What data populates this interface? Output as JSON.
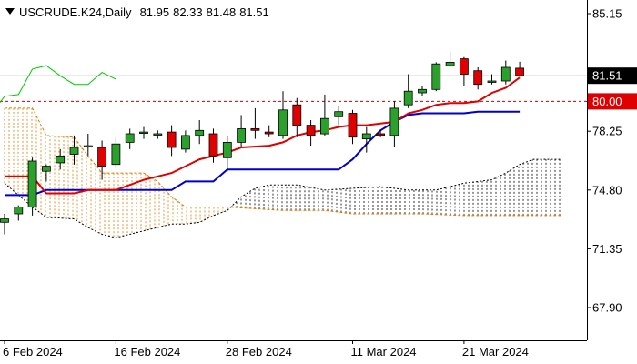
{
  "header": {
    "symbol": "USCRUDE.K24",
    "timeframe": "Daily",
    "ohlc": [
      "81.95",
      "82.33",
      "81.48",
      "81.51"
    ]
  },
  "colors": {
    "background": "#ffffff",
    "axis": "#000000",
    "bull_candle": "#2ca02c",
    "bear_candle": "#e00000",
    "tenkan": "#e00000",
    "kijun": "#0000cc",
    "chikou": "#00cc00",
    "cloud_a": "#e07a00",
    "cloud_b": "#000000",
    "price_line": "#aaaaaa",
    "price_label_bg": "#000000",
    "level_80_bg": "#e00000",
    "level_line": "#cc0000",
    "text": "#000000"
  },
  "chart_data": {
    "type": "candlestick",
    "y_axis": {
      "ticks": [
        "85.15",
        "78.25",
        "74.80",
        "71.35",
        "67.90"
      ],
      "price_label": "81.51",
      "level_label": "80.00"
    },
    "x_axis": {
      "ticks": [
        {
          "label": "6 Feb 2024",
          "index": 0
        },
        {
          "label": "16 Feb 2024",
          "index": 8
        },
        {
          "label": "28 Feb 2024",
          "index": 16
        },
        {
          "label": "11 Mar 2024",
          "index": 25
        },
        {
          "label": "21 Mar 2024",
          "index": 33
        }
      ]
    },
    "ylim": [
      67.0,
      85.8
    ],
    "horizontal_levels": [
      {
        "value": 81.51,
        "style": "solid"
      },
      {
        "value": 80.0,
        "style": "dashed"
      }
    ],
    "candles": [
      {
        "o": 72.9,
        "h": 73.4,
        "l": 72.2,
        "c": 73.1
      },
      {
        "o": 73.4,
        "h": 73.9,
        "l": 73.0,
        "c": 73.8
      },
      {
        "o": 73.8,
        "h": 76.7,
        "l": 73.3,
        "c": 76.5
      },
      {
        "o": 75.9,
        "h": 76.3,
        "l": 75.3,
        "c": 76.2
      },
      {
        "o": 76.4,
        "h": 77.2,
        "l": 76.0,
        "c": 76.8
      },
      {
        "o": 76.9,
        "h": 78.0,
        "l": 76.3,
        "c": 77.3
      },
      {
        "o": 77.4,
        "h": 78.1,
        "l": 76.8,
        "c": 77.4
      },
      {
        "o": 77.3,
        "h": 77.7,
        "l": 75.4,
        "c": 76.2
      },
      {
        "o": 76.3,
        "h": 77.9,
        "l": 76.1,
        "c": 77.5
      },
      {
        "o": 77.6,
        "h": 78.4,
        "l": 77.2,
        "c": 78.1
      },
      {
        "o": 78.2,
        "h": 78.5,
        "l": 77.8,
        "c": 78.2
      },
      {
        "o": 78.1,
        "h": 78.3,
        "l": 77.8,
        "c": 78.1
      },
      {
        "o": 78.2,
        "h": 78.6,
        "l": 76.8,
        "c": 77.3
      },
      {
        "o": 77.2,
        "h": 78.3,
        "l": 77.0,
        "c": 78.0
      },
      {
        "o": 78.0,
        "h": 78.9,
        "l": 77.5,
        "c": 78.3
      },
      {
        "o": 78.1,
        "h": 78.4,
        "l": 76.4,
        "c": 76.8
      },
      {
        "o": 76.7,
        "h": 78.0,
        "l": 75.9,
        "c": 77.6
      },
      {
        "o": 77.6,
        "h": 79.2,
        "l": 77.3,
        "c": 78.4
      },
      {
        "o": 78.4,
        "h": 79.6,
        "l": 77.8,
        "c": 78.3
      },
      {
        "o": 78.2,
        "h": 78.6,
        "l": 77.9,
        "c": 78.1
      },
      {
        "o": 78.0,
        "h": 80.6,
        "l": 77.8,
        "c": 79.5
      },
      {
        "o": 79.8,
        "h": 80.2,
        "l": 77.9,
        "c": 78.6
      },
      {
        "o": 78.6,
        "h": 78.9,
        "l": 77.4,
        "c": 78.0
      },
      {
        "o": 78.1,
        "h": 80.4,
        "l": 78.0,
        "c": 79.0
      },
      {
        "o": 79.1,
        "h": 79.7,
        "l": 78.6,
        "c": 79.4
      },
      {
        "o": 79.3,
        "h": 79.5,
        "l": 77.5,
        "c": 77.9
      },
      {
        "o": 77.8,
        "h": 78.5,
        "l": 77.0,
        "c": 78.1
      },
      {
        "o": 78.1,
        "h": 78.3,
        "l": 77.9,
        "c": 78.0
      },
      {
        "o": 78.0,
        "h": 80.0,
        "l": 77.3,
        "c": 79.6
      },
      {
        "o": 79.8,
        "h": 81.6,
        "l": 79.6,
        "c": 80.6
      },
      {
        "o": 80.5,
        "h": 80.9,
        "l": 80.3,
        "c": 80.7
      },
      {
        "o": 80.7,
        "h": 82.3,
        "l": 80.6,
        "c": 82.2
      },
      {
        "o": 82.1,
        "h": 82.9,
        "l": 82.0,
        "c": 82.3
      },
      {
        "o": 82.5,
        "h": 82.6,
        "l": 80.9,
        "c": 81.6
      },
      {
        "o": 81.8,
        "h": 82.0,
        "l": 80.7,
        "c": 81.0
      },
      {
        "o": 81.2,
        "h": 81.6,
        "l": 81.0,
        "c": 81.2
      },
      {
        "o": 81.2,
        "h": 82.4,
        "l": 81.0,
        "c": 82.0
      },
      {
        "o": 81.95,
        "h": 82.33,
        "l": 81.48,
        "c": 81.51
      }
    ],
    "tenkan": [
      [
        0,
        75.6
      ],
      [
        2,
        75.6
      ],
      [
        3,
        74.6
      ],
      [
        5,
        74.6
      ],
      [
        6,
        74.8
      ],
      [
        8,
        74.8
      ],
      [
        10,
        75.4
      ],
      [
        11,
        75.6
      ],
      [
        12,
        75.8
      ],
      [
        13,
        76.2
      ],
      [
        14,
        76.6
      ],
      [
        16,
        77.0
      ],
      [
        17,
        77.3
      ],
      [
        19,
        77.4
      ],
      [
        20,
        77.6
      ],
      [
        21,
        78.0
      ],
      [
        22,
        78.2
      ],
      [
        23,
        78.3
      ],
      [
        24,
        78.5
      ],
      [
        25,
        78.6
      ],
      [
        26,
        78.6
      ],
      [
        28,
        78.8
      ],
      [
        29,
        79.3
      ],
      [
        30,
        79.5
      ],
      [
        31,
        79.8
      ],
      [
        32,
        79.9
      ],
      [
        33,
        79.9
      ],
      [
        34,
        80.0
      ],
      [
        35,
        80.5
      ],
      [
        36,
        80.8
      ],
      [
        37,
        81.4
      ]
    ],
    "kijun": [
      [
        0,
        74.5
      ],
      [
        2,
        74.5
      ],
      [
        3,
        74.8
      ],
      [
        12,
        74.8
      ],
      [
        13,
        75.3
      ],
      [
        15,
        75.3
      ],
      [
        16,
        76.0
      ],
      [
        24,
        76.0
      ],
      [
        25,
        76.6
      ],
      [
        26,
        77.5
      ],
      [
        27,
        78.3
      ],
      [
        28,
        78.8
      ],
      [
        29,
        79.2
      ],
      [
        30,
        79.3
      ],
      [
        33,
        79.3
      ],
      [
        34,
        79.4
      ],
      [
        37,
        79.4
      ]
    ],
    "chikou": [
      [
        -1,
        79.2
      ],
      [
        0,
        80.3
      ],
      [
        1,
        80.4
      ],
      [
        2,
        81.9
      ],
      [
        3,
        82.1
      ],
      [
        4,
        81.5
      ],
      [
        5,
        81.0
      ],
      [
        6,
        81.0
      ],
      [
        7,
        81.7
      ],
      [
        8,
        81.3
      ]
    ],
    "cloud": {
      "senkou_a": [
        [
          0,
          79.6
        ],
        [
          2,
          79.6
        ],
        [
          3,
          78.0
        ],
        [
          5,
          77.9
        ],
        [
          6,
          76.8
        ],
        [
          7,
          75.8
        ],
        [
          8,
          75.8
        ],
        [
          10,
          75.8
        ],
        [
          11,
          75.3
        ],
        [
          12,
          74.4
        ],
        [
          13,
          73.8
        ],
        [
          14,
          73.8
        ],
        [
          16,
          73.8
        ],
        [
          18,
          73.7
        ],
        [
          20,
          73.6
        ],
        [
          23,
          73.6
        ],
        [
          25,
          73.4
        ],
        [
          30,
          73.4
        ],
        [
          33,
          73.3
        ],
        [
          37,
          73.3
        ],
        [
          40,
          73.3
        ]
      ],
      "senkou_b": [
        [
          0,
          75.2
        ],
        [
          2,
          73.8
        ],
        [
          3,
          73.2
        ],
        [
          5,
          73.1
        ],
        [
          6,
          72.6
        ],
        [
          7,
          72.2
        ],
        [
          8,
          72.0
        ],
        [
          10,
          72.4
        ],
        [
          11,
          72.6
        ],
        [
          12,
          72.8
        ],
        [
          13,
          72.8
        ],
        [
          14,
          72.9
        ],
        [
          15,
          73.3
        ],
        [
          16,
          73.6
        ],
        [
          17,
          74.4
        ],
        [
          18,
          74.9
        ],
        [
          19,
          75.1
        ],
        [
          21,
          75.1
        ],
        [
          23,
          74.8
        ],
        [
          25,
          74.9
        ],
        [
          27,
          75.0
        ],
        [
          29,
          74.8
        ],
        [
          31,
          74.8
        ],
        [
          33,
          75.2
        ],
        [
          35,
          75.4
        ],
        [
          36,
          75.8
        ],
        [
          37,
          76.3
        ],
        [
          38,
          76.6
        ],
        [
          40,
          76.6
        ]
      ]
    }
  }
}
